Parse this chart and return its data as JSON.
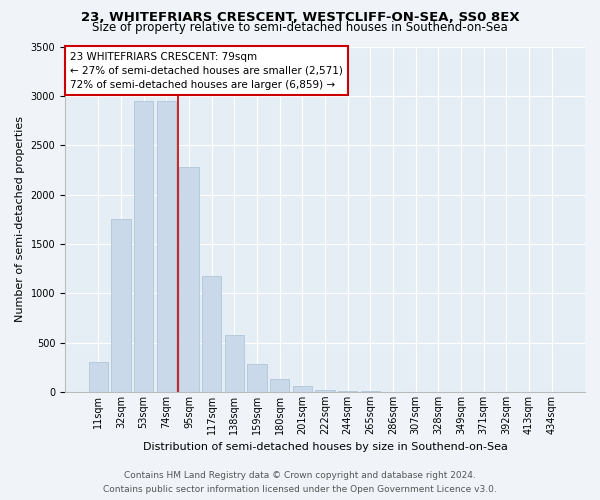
{
  "title": "23, WHITEFRIARS CRESCENT, WESTCLIFF-ON-SEA, SS0 8EX",
  "subtitle": "Size of property relative to semi-detached houses in Southend-on-Sea",
  "xlabel": "Distribution of semi-detached houses by size in Southend-on-Sea",
  "ylabel": "Number of semi-detached properties",
  "footer_line1": "Contains HM Land Registry data © Crown copyright and database right 2024.",
  "footer_line2": "Contains public sector information licensed under the Open Government Licence v3.0.",
  "annotation_title": "23 WHITEFRIARS CRESCENT: 79sqm",
  "annotation_line1": "← 27% of semi-detached houses are smaller (2,571)",
  "annotation_line2": "72% of semi-detached houses are larger (6,859) →",
  "bar_labels": [
    "11sqm",
    "32sqm",
    "53sqm",
    "74sqm",
    "95sqm",
    "117sqm",
    "138sqm",
    "159sqm",
    "180sqm",
    "201sqm",
    "222sqm",
    "244sqm",
    "265sqm",
    "286sqm",
    "307sqm",
    "328sqm",
    "349sqm",
    "371sqm",
    "392sqm",
    "413sqm",
    "434sqm"
  ],
  "bar_values": [
    300,
    1750,
    2950,
    2950,
    2280,
    1170,
    580,
    280,
    130,
    60,
    20,
    10,
    5,
    2,
    1,
    1,
    0,
    0,
    0,
    0,
    0
  ],
  "bar_color": "#c9d9ea",
  "bar_edge_color": "#a8c0d6",
  "vline_color": "#cc0000",
  "vline_x": 3.5,
  "background_color": "#f0f4f8",
  "plot_bg_color": "#e6eef5",
  "grid_color": "#ffffff",
  "ylim": [
    0,
    3500
  ],
  "annotation_box_facecolor": "#ffffff",
  "annotation_box_edgecolor": "#cc0000",
  "title_fontsize": 9.5,
  "subtitle_fontsize": 8.5,
  "xlabel_fontsize": 8,
  "ylabel_fontsize": 8,
  "tick_fontsize": 7,
  "annot_fontsize": 7.5,
  "footer_fontsize": 6.5
}
